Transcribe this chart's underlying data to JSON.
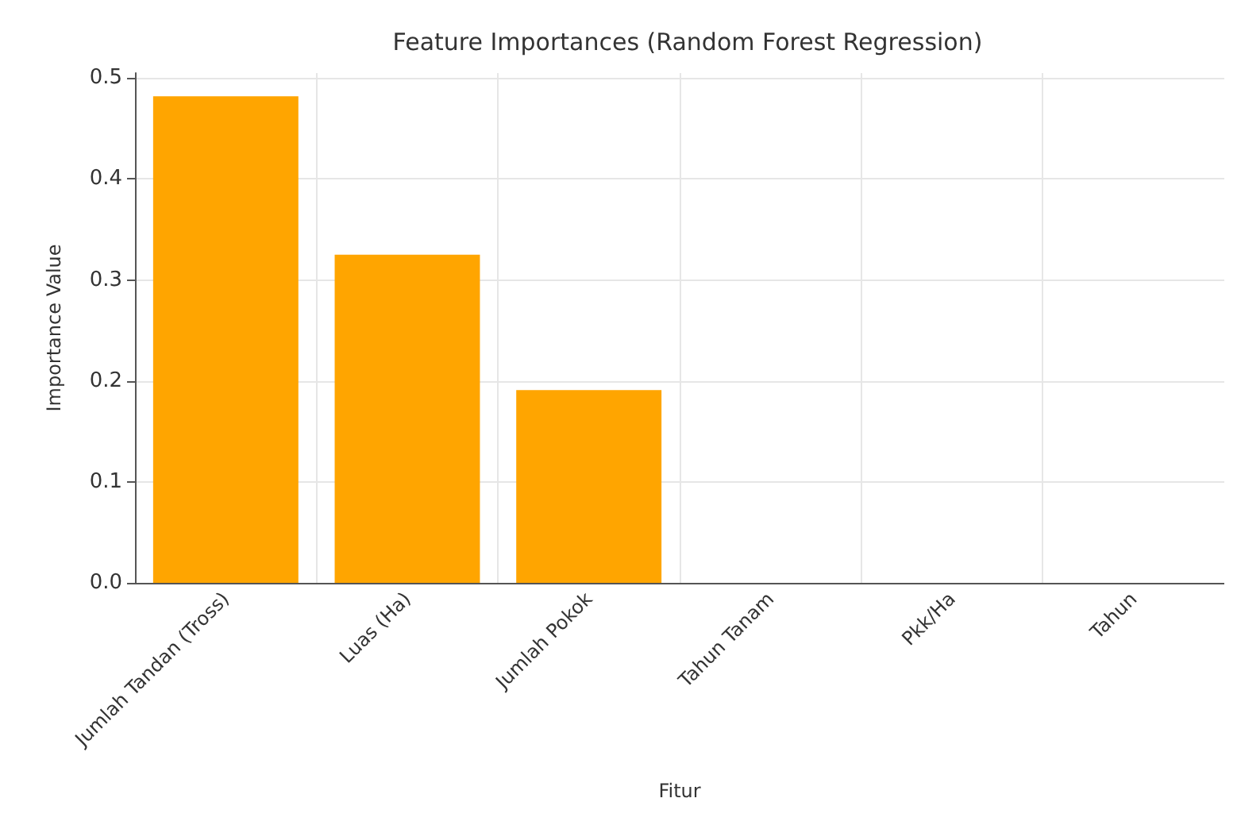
{
  "chart_data": {
    "type": "bar",
    "title": "Feature Importances (Random Forest Regression)",
    "xlabel": "Fitur",
    "ylabel": "Importance Value",
    "categories": [
      "Jumlah Tandan (Tross)",
      "Luas (Ha)",
      "Jumlah Pokok",
      "Tahun Tanam",
      "Pkk/Ha",
      "Tahun"
    ],
    "values": [
      0.482,
      0.325,
      0.191,
      0,
      0,
      0
    ],
    "color": "#ffa500",
    "ylim": [
      0,
      0.505
    ],
    "yticks": [
      {
        "value": 0,
        "label": "0.0"
      },
      {
        "value": 0.1,
        "label": "0.1"
      },
      {
        "value": 0.2,
        "label": "0.2"
      },
      {
        "value": 0.3,
        "label": "0.3"
      },
      {
        "value": 0.4,
        "label": "0.4"
      },
      {
        "value": 0.5,
        "label": "0.5"
      }
    ],
    "grid": true
  }
}
